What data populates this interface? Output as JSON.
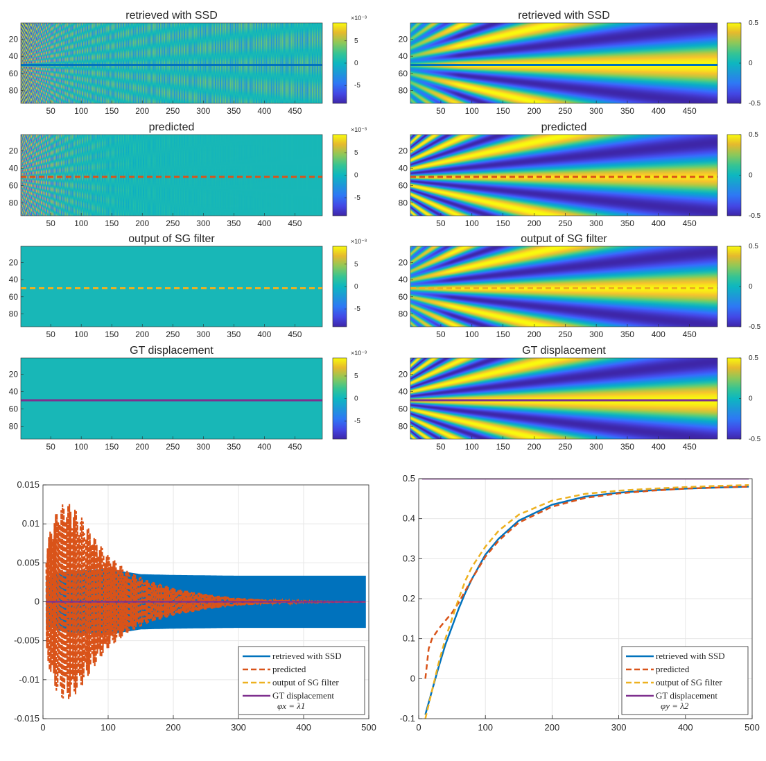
{
  "colors": {
    "ssd": "#0072BD",
    "predicted": "#D95319",
    "sg": "#EDB120",
    "gt": "#7E2F8E",
    "grid": "#e6e6e6",
    "axis": "#262626"
  },
  "chart_data": [
    {
      "id": "hm-x-ssd",
      "type": "heatmap",
      "title": "retrieved with SSD",
      "pattern": "x-ssd",
      "overlay": "ssd",
      "overlay_dash": false,
      "overlay_y": 50,
      "xlim": [
        1,
        495
      ],
      "ylim": [
        1,
        95
      ],
      "xticks": [
        50,
        100,
        150,
        200,
        250,
        300,
        350,
        400,
        450
      ],
      "yticks": [
        20,
        40,
        60,
        80
      ],
      "clim": [
        -0.009,
        0.009
      ],
      "cbar_ticks": [
        5,
        0,
        -5
      ],
      "cbar_tick_labels": [
        "5",
        "0",
        "-5"
      ],
      "cbar_exponent": "×10⁻³"
    },
    {
      "id": "hm-x-pred",
      "type": "heatmap",
      "title": "predicted",
      "pattern": "x-pred",
      "overlay": "predicted",
      "overlay_dash": true,
      "overlay_y": 50,
      "xlim": [
        1,
        495
      ],
      "ylim": [
        1,
        95
      ],
      "xticks": [
        50,
        100,
        150,
        200,
        250,
        300,
        350,
        400,
        450
      ],
      "yticks": [
        20,
        40,
        60,
        80
      ],
      "clim": [
        -0.009,
        0.009
      ],
      "cbar_ticks": [
        5,
        0,
        -5
      ],
      "cbar_tick_labels": [
        "5",
        "0",
        "-5"
      ],
      "cbar_exponent": "×10⁻³"
    },
    {
      "id": "hm-x-sg",
      "type": "heatmap",
      "title": "output of SG filter",
      "pattern": "flat",
      "overlay": "sg",
      "overlay_dash": true,
      "overlay_y": 50,
      "xlim": [
        1,
        495
      ],
      "ylim": [
        1,
        95
      ],
      "xticks": [
        50,
        100,
        150,
        200,
        250,
        300,
        350,
        400,
        450
      ],
      "yticks": [
        20,
        40,
        60,
        80
      ],
      "clim": [
        -0.009,
        0.009
      ],
      "cbar_ticks": [
        5,
        0,
        -5
      ],
      "cbar_tick_labels": [
        "5",
        "0",
        "-5"
      ],
      "cbar_exponent": "×10⁻³"
    },
    {
      "id": "hm-x-gt",
      "type": "heatmap",
      "title": "GT displacement",
      "pattern": "flat",
      "overlay": "gt",
      "overlay_dash": false,
      "overlay_y": 50,
      "xlim": [
        1,
        495
      ],
      "ylim": [
        1,
        95
      ],
      "xticks": [
        50,
        100,
        150,
        200,
        250,
        300,
        350,
        400,
        450
      ],
      "yticks": [
        20,
        40,
        60,
        80
      ],
      "clim": [
        -0.009,
        0.009
      ],
      "cbar_ticks": [
        5,
        0,
        -5
      ],
      "cbar_tick_labels": [
        "5",
        "0",
        "-5"
      ],
      "cbar_exponent": "×10⁻³"
    },
    {
      "id": "hm-y-ssd",
      "type": "heatmap",
      "title": "retrieved with SSD",
      "pattern": "y-ssd",
      "overlay": "ssd",
      "overlay_dash": false,
      "overlay_y": 50,
      "xlim": [
        1,
        495
      ],
      "ylim": [
        1,
        95
      ],
      "xticks": [
        50,
        100,
        150,
        200,
        250,
        300,
        350,
        400,
        450
      ],
      "yticks": [
        20,
        40,
        60,
        80
      ],
      "clim": [
        -0.5,
        0.5
      ],
      "cbar_ticks": [
        0.5,
        0,
        -0.5
      ],
      "cbar_tick_labels": [
        "0.5",
        "0",
        "-0.5"
      ],
      "cbar_exponent": ""
    },
    {
      "id": "hm-y-pred",
      "type": "heatmap",
      "title": "predicted",
      "pattern": "y-pred",
      "overlay": "predicted",
      "overlay_dash": true,
      "overlay_y": 50,
      "xlim": [
        1,
        495
      ],
      "ylim": [
        1,
        95
      ],
      "xticks": [
        50,
        100,
        150,
        200,
        250,
        300,
        350,
        400,
        450
      ],
      "yticks": [
        20,
        40,
        60,
        80
      ],
      "clim": [
        -0.5,
        0.5
      ],
      "cbar_ticks": [
        0.5,
        0,
        -0.5
      ],
      "cbar_tick_labels": [
        "0.5",
        "0",
        "-0.5"
      ],
      "cbar_exponent": ""
    },
    {
      "id": "hm-y-sg",
      "type": "heatmap",
      "title": "output of SG filter",
      "pattern": "y-sg",
      "overlay": "sg",
      "overlay_dash": true,
      "overlay_y": 50,
      "xlim": [
        1,
        495
      ],
      "ylim": [
        1,
        95
      ],
      "xticks": [
        50,
        100,
        150,
        200,
        250,
        300,
        350,
        400,
        450
      ],
      "yticks": [
        20,
        40,
        60,
        80
      ],
      "clim": [
        -0.5,
        0.5
      ],
      "cbar_ticks": [
        0.5,
        0,
        -0.5
      ],
      "cbar_tick_labels": [
        "0.5",
        "0",
        "-0.5"
      ],
      "cbar_exponent": ""
    },
    {
      "id": "hm-y-gt",
      "type": "heatmap",
      "title": "GT displacement",
      "pattern": "y-gt",
      "overlay": "gt",
      "overlay_dash": false,
      "overlay_y": 50,
      "xlim": [
        1,
        495
      ],
      "ylim": [
        1,
        95
      ],
      "xticks": [
        50,
        100,
        150,
        200,
        250,
        300,
        350,
        400,
        450
      ],
      "yticks": [
        20,
        40,
        60,
        80
      ],
      "clim": [
        -0.5,
        0.5
      ],
      "cbar_ticks": [
        0.5,
        0,
        -0.5
      ],
      "cbar_tick_labels": [
        "0.5",
        "0",
        "-0.5"
      ],
      "cbar_exponent": ""
    },
    {
      "id": "line-x",
      "type": "line",
      "xlim": [
        0,
        500
      ],
      "ylim": [
        -0.015,
        0.015
      ],
      "xticks": [
        0,
        100,
        200,
        300,
        400,
        500
      ],
      "xtick_labels": [
        "0",
        "100",
        "200",
        "300",
        "400",
        "500"
      ],
      "yticks": [
        -0.015,
        -0.01,
        -0.005,
        0,
        0.005,
        0.01,
        0.015
      ],
      "ytick_labels": [
        "-0.015",
        "-0.01",
        "-0.005",
        "0",
        "0.005",
        "0.01",
        "0.015"
      ],
      "grid": true,
      "legend_position": "bottom-right",
      "legend_note": "φx = λ1",
      "series": [
        {
          "name": "retrieved with SSD",
          "color": "ssd",
          "dash": false,
          "kind": "band",
          "envelope_x": [
            5,
            30,
            60,
            100,
            120,
            150,
            200,
            300,
            400,
            495
          ],
          "envelope_y": [
            0.003,
            0.0038,
            0.004,
            0.0042,
            0.0039,
            0.0035,
            0.0034,
            0.0033,
            0.0033,
            0.0033
          ]
        },
        {
          "name": "predicted",
          "color": "predicted",
          "dash": true,
          "kind": "oscillation",
          "envelope_x": [
            5,
            15,
            25,
            35,
            45,
            60,
            80,
            100,
            130,
            160,
            200,
            250,
            300,
            340,
            400,
            495
          ],
          "envelope_y": [
            0.007,
            0.0105,
            0.0122,
            0.0128,
            0.0124,
            0.0108,
            0.0082,
            0.006,
            0.004,
            0.0028,
            0.0018,
            0.001,
            0.0005,
            0.0003,
            0.0001,
            0.0
          ]
        },
        {
          "name": "output of SG filter",
          "color": "sg",
          "dash": true,
          "x": [
            5,
            495
          ],
          "y": [
            0,
            0
          ]
        },
        {
          "name": "GT displacement",
          "color": "gt",
          "dash": false,
          "x": [
            5,
            495
          ],
          "y": [
            0,
            0
          ]
        }
      ]
    },
    {
      "id": "line-y",
      "type": "line",
      "xlim": [
        0,
        500
      ],
      "ylim": [
        -0.1,
        0.5
      ],
      "xticks": [
        0,
        100,
        200,
        300,
        400,
        500
      ],
      "xtick_labels": [
        "0",
        "100",
        "200",
        "300",
        "400",
        "500"
      ],
      "yticks": [
        -0.1,
        0,
        0.1,
        0.2,
        0.3,
        0.4,
        0.5
      ],
      "ytick_labels": [
        "-0.1",
        "0",
        "0.1",
        "0.2",
        "0.3",
        "0.4",
        "0.5"
      ],
      "grid": true,
      "legend_position": "bottom-right",
      "legend_note": "φy = λ2",
      "series": [
        {
          "name": "retrieved with SSD",
          "color": "ssd",
          "dash": false,
          "x": [
            10,
            20,
            30,
            40,
            50,
            60,
            70,
            80,
            100,
            120,
            150,
            200,
            250,
            300,
            350,
            400,
            450,
            495
          ],
          "y": [
            -0.09,
            -0.03,
            0.03,
            0.085,
            0.13,
            0.175,
            0.215,
            0.25,
            0.31,
            0.35,
            0.395,
            0.435,
            0.455,
            0.465,
            0.471,
            0.475,
            0.478,
            0.48
          ]
        },
        {
          "name": "predicted",
          "color": "predicted",
          "dash": true,
          "x": [
            10,
            15,
            20,
            30,
            40,
            50,
            60,
            70,
            80,
            100,
            120,
            150,
            200,
            250,
            300,
            350,
            400,
            450,
            495
          ],
          "y": [
            0.0,
            0.075,
            0.1,
            0.125,
            0.145,
            0.165,
            0.19,
            0.22,
            0.25,
            0.305,
            0.345,
            0.39,
            0.43,
            0.452,
            0.463,
            0.47,
            0.475,
            0.478,
            0.48
          ]
        },
        {
          "name": "output of SG filter",
          "color": "sg",
          "dash": true,
          "x": [
            10,
            20,
            30,
            40,
            50,
            60,
            70,
            80,
            100,
            120,
            150,
            200,
            250,
            300,
            350,
            400,
            450,
            495
          ],
          "y": [
            -0.1,
            -0.03,
            0.04,
            0.1,
            0.15,
            0.2,
            0.245,
            0.28,
            0.33,
            0.37,
            0.41,
            0.445,
            0.462,
            0.47,
            0.475,
            0.479,
            0.482,
            0.484
          ]
        },
        {
          "name": "GT displacement",
          "color": "gt",
          "dash": false,
          "x": [
            5,
            495
          ],
          "y": [
            0.5,
            0.5
          ]
        }
      ]
    }
  ]
}
